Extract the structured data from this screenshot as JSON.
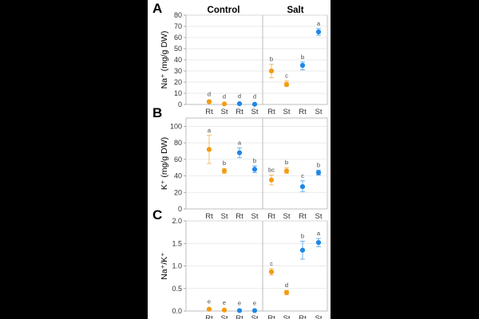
{
  "headers": {
    "control": "Control",
    "salt": "Salt"
  },
  "colors": {
    "orange": "#F39C12",
    "blue": "#1E88E5",
    "grid": "#E3E3E3",
    "divider": "#BBBBBB"
  },
  "chart_data": [
    {
      "type": "scatter",
      "panel": "A",
      "ylabel": "Na⁺ (mg/g DW)",
      "ylim": [
        0,
        80
      ],
      "yticks": [
        0,
        10,
        20,
        30,
        40,
        50,
        60,
        70,
        80
      ],
      "categories": [
        "Rt",
        "St",
        "Rt",
        "St",
        "Rt",
        "St",
        "Rt",
        "St"
      ],
      "groups": [
        "Control",
        "Control",
        "Control",
        "Control",
        "Salt",
        "Salt",
        "Salt",
        "Salt"
      ],
      "series_color": [
        "orange",
        "orange",
        "blue",
        "blue",
        "orange",
        "orange",
        "blue",
        "blue"
      ],
      "means": [
        2.5,
        0.5,
        0.7,
        0.2,
        30,
        18,
        35,
        65
      ],
      "err_low": [
        1.5,
        0.2,
        0.3,
        0.1,
        24,
        16,
        31,
        62
      ],
      "err_high": [
        3.5,
        0.8,
        1.0,
        0.3,
        36,
        21,
        38,
        68
      ],
      "letters": [
        "d",
        "d",
        "d",
        "d",
        "b",
        "c",
        "b",
        "a"
      ],
      "grid": true
    },
    {
      "type": "scatter",
      "panel": "B",
      "ylabel": "K⁺ (mg/g DW)",
      "ylim": [
        0,
        110
      ],
      "yticks": [
        0,
        20,
        40,
        60,
        80,
        100
      ],
      "categories": [
        "Rt",
        "St",
        "Rt",
        "St",
        "Rt",
        "St",
        "Rt",
        "St"
      ],
      "groups": [
        "Control",
        "Control",
        "Control",
        "Control",
        "Salt",
        "Salt",
        "Salt",
        "Salt"
      ],
      "series_color": [
        "orange",
        "orange",
        "blue",
        "blue",
        "orange",
        "orange",
        "blue",
        "blue"
      ],
      "means": [
        72,
        46,
        68,
        48,
        35,
        46,
        27,
        44
      ],
      "err_low": [
        55,
        43,
        62,
        44,
        29,
        43,
        21,
        41
      ],
      "err_high": [
        89,
        49,
        74,
        52,
        41,
        50,
        34,
        47
      ],
      "letters": [
        "a",
        "b",
        "a",
        "b",
        "bc",
        "b",
        "c",
        "b"
      ],
      "grid": true
    },
    {
      "type": "scatter",
      "panel": "C",
      "ylabel": "Na⁺/K⁺",
      "ylim": [
        0,
        2.0
      ],
      "yticks": [
        0.0,
        0.5,
        1.0,
        1.5,
        2.0
      ],
      "yticklabels": [
        "0.0",
        "0.5",
        "1.0",
        "1.5",
        "2.0"
      ],
      "categories": [
        "Rt",
        "St",
        "Rt",
        "St",
        "Rt",
        "St",
        "Rt",
        "St"
      ],
      "groups": [
        "Control",
        "Control",
        "Control",
        "Control",
        "Salt",
        "Salt",
        "Salt",
        "Salt"
      ],
      "series_color": [
        "orange",
        "orange",
        "blue",
        "blue",
        "orange",
        "orange",
        "blue",
        "blue"
      ],
      "means": [
        0.04,
        0.02,
        0.01,
        0.01,
        0.87,
        0.41,
        1.35,
        1.52
      ],
      "err_low": [
        0.02,
        0.01,
        0.005,
        0.005,
        0.8,
        0.36,
        1.15,
        1.43
      ],
      "err_high": [
        0.06,
        0.03,
        0.015,
        0.015,
        0.94,
        0.46,
        1.55,
        1.61
      ],
      "letters": [
        "e",
        "e",
        "e",
        "e",
        "c",
        "d",
        "b",
        "a"
      ],
      "grid": true
    }
  ]
}
